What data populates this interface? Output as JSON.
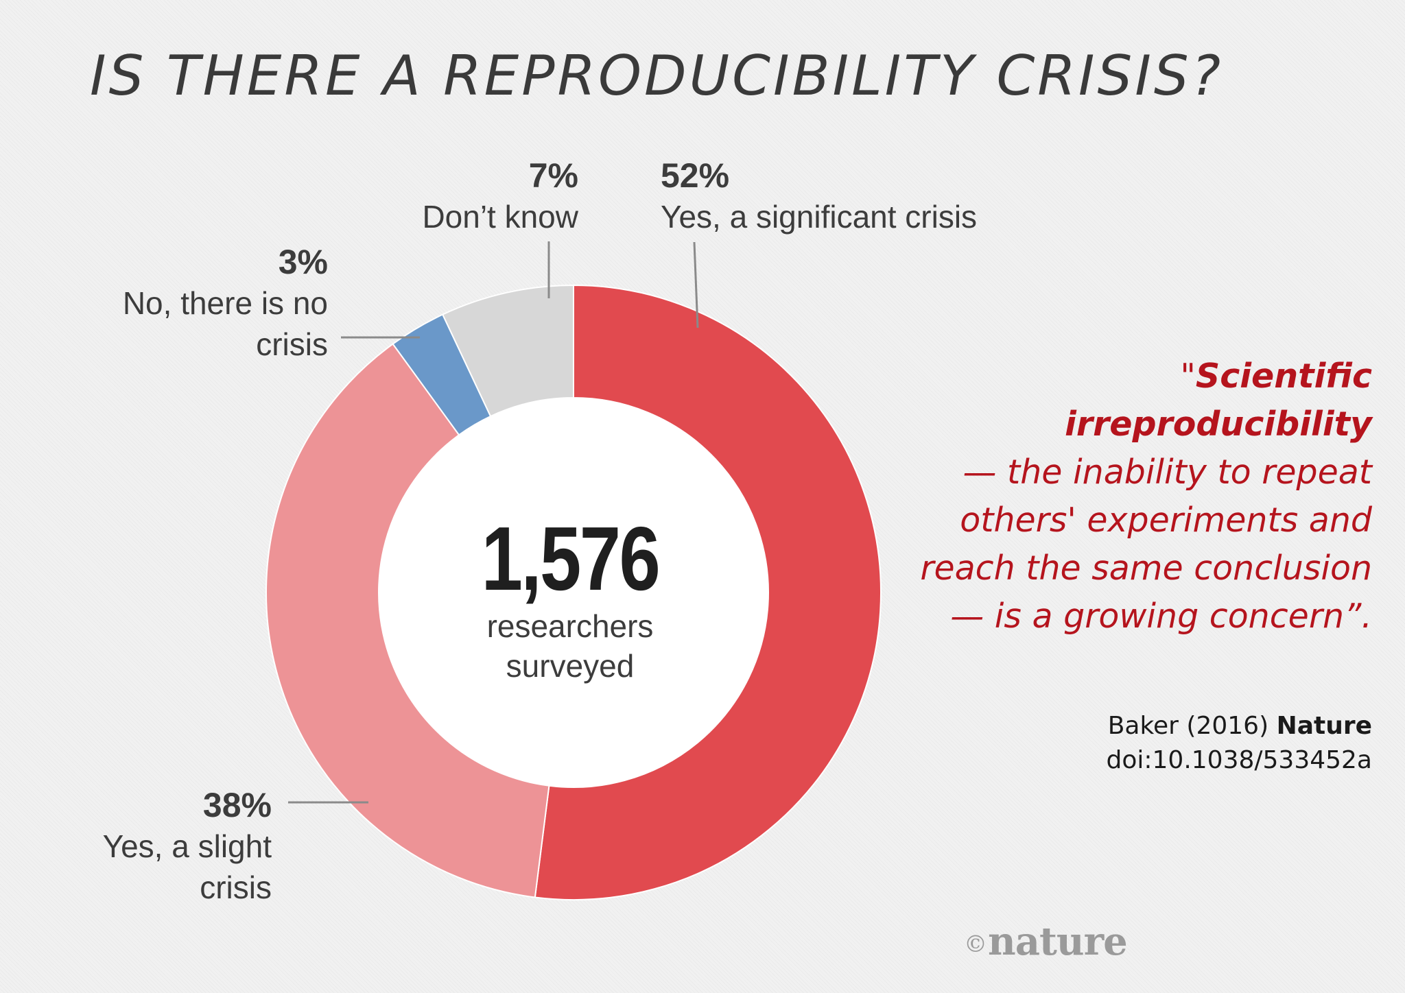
{
  "title": "IS THERE A REPRODUCIBILITY CRISIS?",
  "chart_data": {
    "type": "pie",
    "title": "IS THERE A REPRODUCIBILITY CRISIS?",
    "slices": [
      {
        "label": "Yes, a significant crisis",
        "value": 52,
        "pct_label": "52%",
        "color": "#e14a4f"
      },
      {
        "label": "Yes, a slight crisis",
        "value": 38,
        "pct_label": "38%",
        "color": "#ed9396"
      },
      {
        "label": "No, there is no crisis",
        "value": 3,
        "pct_label": "3%",
        "color": "#6a98c9"
      },
      {
        "label": "Don’t know",
        "value": 7,
        "pct_label": "7%",
        "color": "#d7d7d7"
      }
    ],
    "center_value": "1,576",
    "center_label_line1": "researchers",
    "center_label_line2": "surveyed"
  },
  "labels": {
    "significant": {
      "pct": "52%",
      "text": "Yes, a significant crisis"
    },
    "dontknow": {
      "pct": "7%",
      "text": "Don’t know"
    },
    "nocrisis": {
      "pct": "3%",
      "line1": "No, there is no",
      "line2": "crisis"
    },
    "slight": {
      "pct": "38%",
      "line1": "Yes, a slight",
      "line2": "crisis"
    }
  },
  "quote": {
    "open": "\"",
    "strong": "Scientific irreproducibility",
    "line2": "— the inability to repeat",
    "line3": "others' experiments and",
    "line4": "reach the same conclusion",
    "line5": "— is a growing concern”."
  },
  "citation": {
    "author": "Baker (2016) ",
    "journal": "Nature",
    "doi": "doi:10.1038/533452a"
  },
  "logo": {
    "copyright": "©",
    "name": "nature"
  }
}
